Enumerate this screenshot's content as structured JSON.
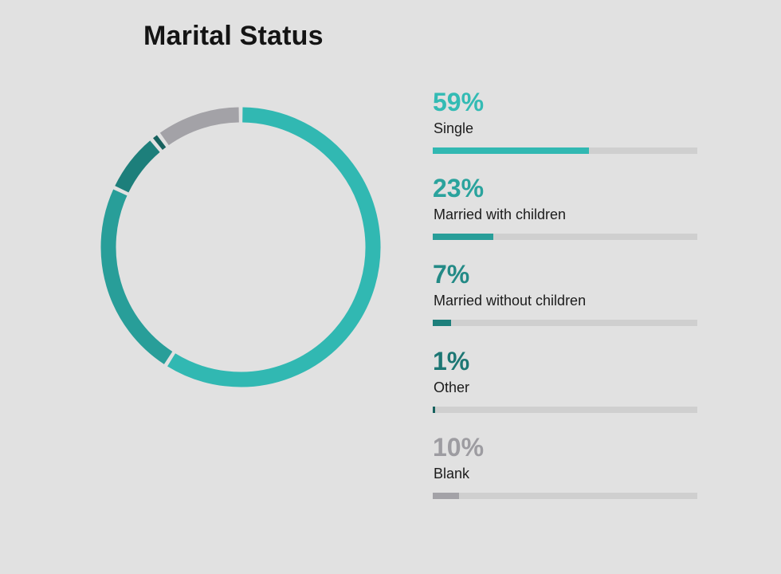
{
  "chart_data": {
    "type": "pie",
    "style": "donut",
    "title": "Marital Status",
    "legend_placement": "right",
    "series": [
      {
        "name": "Single",
        "value": 59,
        "label": "59%",
        "color": "#31b8b2",
        "pct_color": "#33bbb4"
      },
      {
        "name": "Married with children",
        "value": 23,
        "label": "23%",
        "color": "#289e99",
        "pct_color": "#2aa39d"
      },
      {
        "name": "Married without children",
        "value": 7,
        "label": "7%",
        "color": "#1d7f7b",
        "pct_color": "#238a86"
      },
      {
        "name": "Other",
        "value": 1,
        "label": "1%",
        "color": "#17615e",
        "pct_color": "#1d7774"
      },
      {
        "name": "Blank",
        "value": 10,
        "label": "10%",
        "color": "#a3a2a7",
        "pct_color": "#9d9ca1"
      }
    ]
  }
}
